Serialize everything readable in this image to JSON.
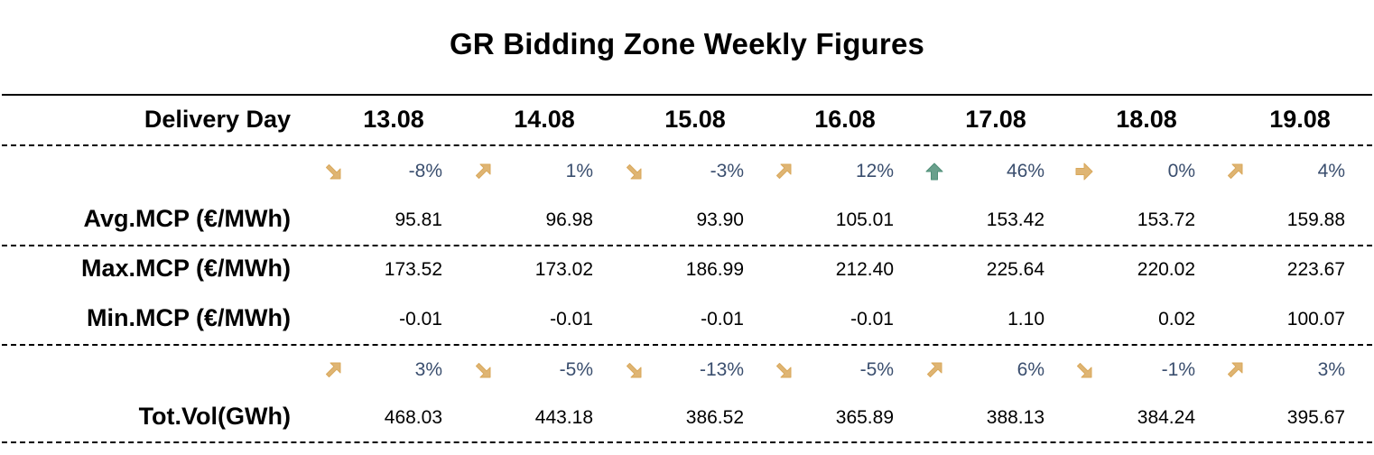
{
  "title": "GR Bidding Zone Weekly Figures",
  "header": {
    "label": "Delivery Day",
    "dates": [
      "13.08",
      "14.08",
      "15.08",
      "16.08",
      "17.08",
      "18.08",
      "19.08"
    ]
  },
  "avg_change": [
    {
      "value": "-8%",
      "icon": "arrow-down-right-icon",
      "color": "#d9a85b"
    },
    {
      "value": "1%",
      "icon": "arrow-up-right-icon",
      "color": "#d9a85b"
    },
    {
      "value": "-3%",
      "icon": "arrow-down-right-icon",
      "color": "#d9a85b"
    },
    {
      "value": "12%",
      "icon": "arrow-up-right-icon",
      "color": "#d9a85b"
    },
    {
      "value": "46%",
      "icon": "arrow-up-icon",
      "color": "#4f8f78"
    },
    {
      "value": "0%",
      "icon": "arrow-right-icon",
      "color": "#d9a85b"
    },
    {
      "value": "4%",
      "icon": "arrow-up-right-icon",
      "color": "#d9a85b"
    }
  ],
  "avg_mcp": {
    "label": "Avg.MCP (€/MWh)",
    "values": [
      "95.81",
      "96.98",
      "93.90",
      "105.01",
      "153.42",
      "153.72",
      "159.88"
    ]
  },
  "max_mcp": {
    "label": "Max.MCP (€/MWh)",
    "values": [
      "173.52",
      "173.02",
      "186.99",
      "212.40",
      "225.64",
      "220.02",
      "223.67"
    ]
  },
  "min_mcp": {
    "label": "Min.MCP (€/MWh)",
    "values": [
      "-0.01",
      "-0.01",
      "-0.01",
      "-0.01",
      "1.10",
      "0.02",
      "100.07"
    ]
  },
  "vol_change": [
    {
      "value": "3%",
      "icon": "arrow-up-right-icon",
      "color": "#d9a85b"
    },
    {
      "value": "-5%",
      "icon": "arrow-down-right-icon",
      "color": "#d9a85b"
    },
    {
      "value": "-13%",
      "icon": "arrow-down-right-icon",
      "color": "#d9a85b"
    },
    {
      "value": "-5%",
      "icon": "arrow-down-right-icon",
      "color": "#d9a85b"
    },
    {
      "value": "6%",
      "icon": "arrow-up-right-icon",
      "color": "#d9a85b"
    },
    {
      "value": "-1%",
      "icon": "arrow-down-right-icon",
      "color": "#d9a85b"
    },
    {
      "value": "3%",
      "icon": "arrow-up-right-icon",
      "color": "#d9a85b"
    }
  ],
  "tot_vol": {
    "label": "Tot.Vol(GWh)",
    "values": [
      "468.03",
      "443.18",
      "386.52",
      "365.89",
      "388.13",
      "384.24",
      "395.67"
    ]
  }
}
